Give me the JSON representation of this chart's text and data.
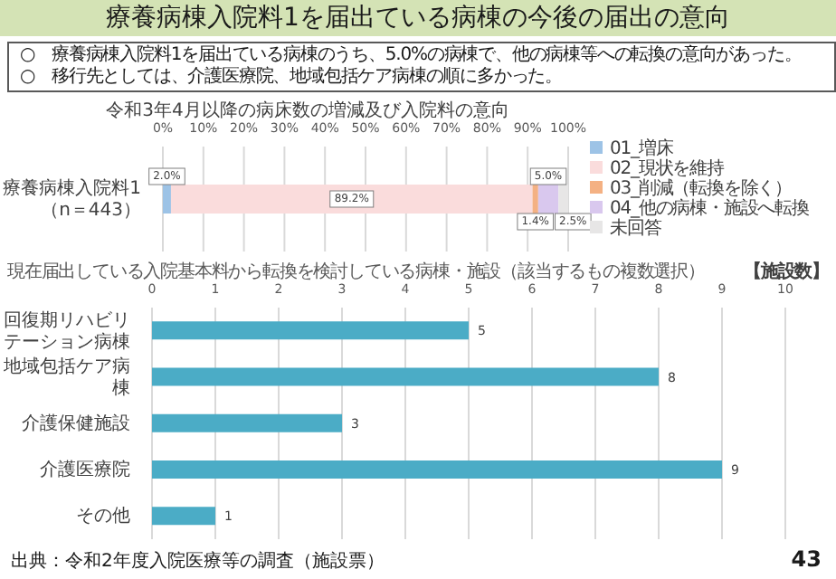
{
  "chart_data": [
    {
      "type": "bar",
      "orientation": "horizontal",
      "stacked": true,
      "title": "令和3年4月以降の病床数の増減及び入院料の意向",
      "annotations": [
        "療養病棟入院料1を届出ている病棟の今後の届出の意向",
        "○　療養病棟入院料1を届出ている病棟のうち、5.0%の病棟で、他の病棟等への転換の意向があった。",
        "○　移行先としては、介護医療院、地域包括ケア病棟の順に多かった。"
      ],
      "categories": [
        "療養病棟入院料1（n＝443）"
      ],
      "series": [
        {
          "name": "01_増床",
          "color": "#9dc3e6",
          "values": [
            2.0
          ],
          "value_labels": [
            "2.0%"
          ]
        },
        {
          "name": "02_現状を維持",
          "color": "#fadcdc",
          "values": [
            89.2
          ],
          "value_labels": [
            "89.2%"
          ]
        },
        {
          "name": "03_削減（転換を除く）",
          "color": "#f4b183",
          "values": [
            1.4
          ],
          "value_labels": [
            "1.4%"
          ]
        },
        {
          "name": "04_他の病棟・施設へ転換",
          "color": "#d9c8ee",
          "values": [
            5.0
          ],
          "value_labels": [
            "5.0%"
          ]
        },
        {
          "name": "未回答",
          "color": "#e7e6e6",
          "values": [
            2.5
          ],
          "value_labels": [
            "2.5%"
          ]
        }
      ],
      "xlim": [
        0,
        100
      ],
      "xticks": [
        {
          "value": 0,
          "label": "0%"
        },
        {
          "value": 10,
          "label": "10%"
        },
        {
          "value": 20,
          "label": "20%"
        },
        {
          "value": 30,
          "label": "30%"
        },
        {
          "value": 40,
          "label": "40%"
        },
        {
          "value": 50,
          "label": "50%"
        },
        {
          "value": 60,
          "label": "60%"
        },
        {
          "value": 70,
          "label": "70%"
        },
        {
          "value": 80,
          "label": "80%"
        },
        {
          "value": 90,
          "label": "90%"
        },
        {
          "value": 100,
          "label": "100%"
        }
      ],
      "grid": "x",
      "legend": "right"
    },
    {
      "type": "bar",
      "orientation": "horizontal",
      "title": "現在届出している入院基本料から転換を検討している病棟・施設（該当するもの複数選択）",
      "xlabel": "【施設数】",
      "annotations": [
        "出典：令和2年度入院医療等の調査（施設票）",
        "43"
      ],
      "categories": [
        "回復期リハビリテーション病棟",
        "地域包括ケア病棟",
        "介護保健施設",
        "介護医療院",
        "その他"
      ],
      "values": [
        5,
        8,
        3,
        9,
        1
      ],
      "color": "#4bacc6",
      "data_labels": true,
      "xlim": [
        0,
        10
      ],
      "xticks": [
        0,
        1,
        2,
        3,
        4,
        5,
        6,
        7,
        8,
        9,
        10
      ],
      "grid": "x",
      "legend": false
    }
  ]
}
